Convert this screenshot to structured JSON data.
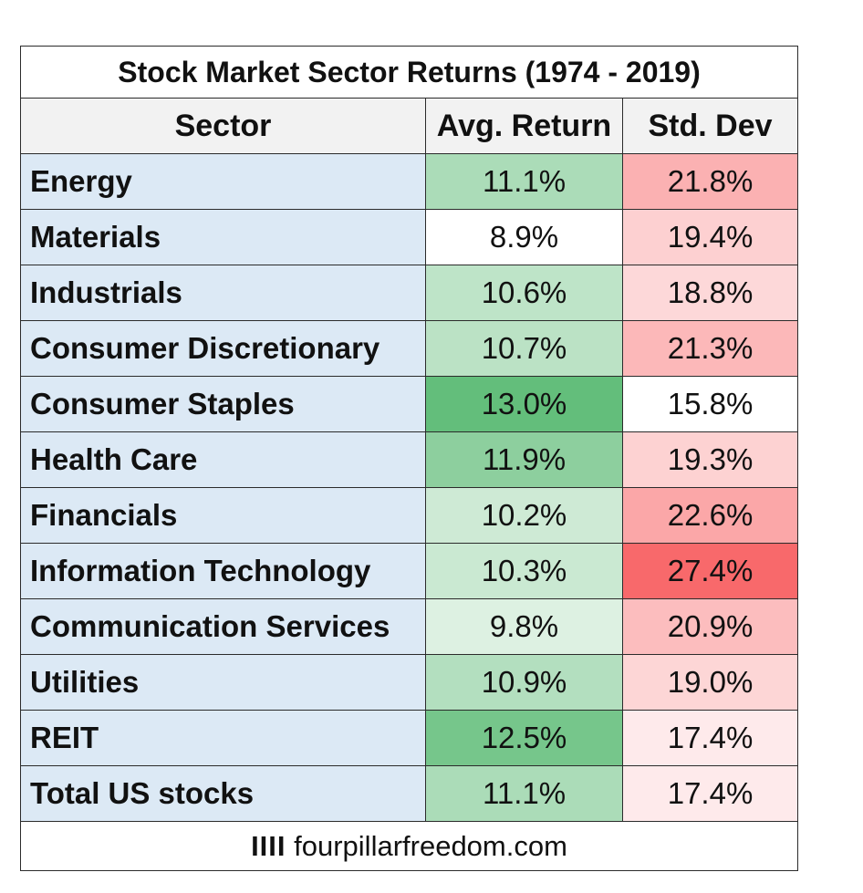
{
  "chart_data": {
    "type": "table",
    "title": "Stock Market Sector Returns (1974 - 2019)",
    "columns": [
      "Sector",
      "Avg. Return",
      "Std. Dev"
    ],
    "rows": [
      {
        "sector": "Energy",
        "avg_return": "11.1%",
        "std_dev": "21.8%",
        "avg_return_value": 11.1,
        "std_dev_value": 21.8
      },
      {
        "sector": "Materials",
        "avg_return": "8.9%",
        "std_dev": "19.4%",
        "avg_return_value": 8.9,
        "std_dev_value": 19.4
      },
      {
        "sector": "Industrials",
        "avg_return": "10.6%",
        "std_dev": "18.8%",
        "avg_return_value": 10.6,
        "std_dev_value": 18.8
      },
      {
        "sector": "Consumer Discretionary",
        "avg_return": "10.7%",
        "std_dev": "21.3%",
        "avg_return_value": 10.7,
        "std_dev_value": 21.3
      },
      {
        "sector": "Consumer Staples",
        "avg_return": "13.0%",
        "std_dev": "15.8%",
        "avg_return_value": 13.0,
        "std_dev_value": 15.8
      },
      {
        "sector": "Health Care",
        "avg_return": "11.9%",
        "std_dev": "19.3%",
        "avg_return_value": 11.9,
        "std_dev_value": 19.3
      },
      {
        "sector": "Financials",
        "avg_return": "10.2%",
        "std_dev": "22.6%",
        "avg_return_value": 10.2,
        "std_dev_value": 22.6
      },
      {
        "sector": "Information Technology",
        "avg_return": "10.3%",
        "std_dev": "27.4%",
        "avg_return_value": 10.3,
        "std_dev_value": 27.4
      },
      {
        "sector": "Communication Services",
        "avg_return": "9.8%",
        "std_dev": "20.9%",
        "avg_return_value": 9.8,
        "std_dev_value": 20.9
      },
      {
        "sector": "Utilities",
        "avg_return": "10.9%",
        "std_dev": "19.0%",
        "avg_return_value": 10.9,
        "std_dev_value": 19.0
      },
      {
        "sector": "REIT",
        "avg_return": "12.5%",
        "std_dev": "17.4%",
        "avg_return_value": 12.5,
        "std_dev_value": 17.4
      },
      {
        "sector": "Total US stocks",
        "avg_return": "11.1%",
        "std_dev": "17.4%",
        "avg_return_value": 11.1,
        "std_dev_value": 17.4
      }
    ],
    "color_scale": {
      "avg_return_low": "#ffffff",
      "avg_return_high": "#63be7b",
      "std_dev_low": "#ffffff",
      "std_dev_high": "#f8696b"
    }
  },
  "footer": {
    "mark": "IIII",
    "site": "fourpillarfreedom.com"
  }
}
